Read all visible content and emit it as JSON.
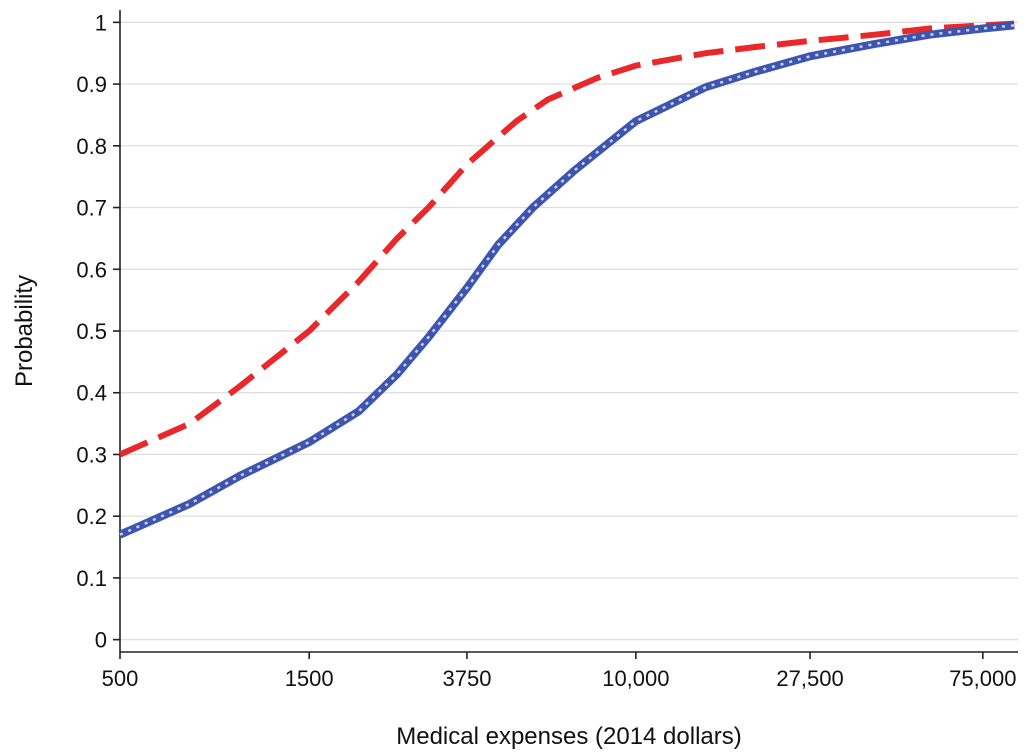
{
  "chart_data": {
    "type": "line",
    "title": "",
    "xlabel": "Medical expenses (2014 dollars)",
    "ylabel": "Probability",
    "x_scale": "log",
    "xlim": [
      500,
      92000
    ],
    "ylim": [
      -0.02,
      1.02
    ],
    "x_ticks": [
      500,
      1500,
      3750,
      10000,
      27500,
      75000
    ],
    "x_tick_labels": [
      "500",
      "1500",
      "3750",
      "10,000",
      "27,500",
      "75,000"
    ],
    "y_ticks": [
      0,
      0.1,
      0.2,
      0.3,
      0.4,
      0.5,
      0.6,
      0.7,
      0.8,
      0.9,
      1
    ],
    "y_tick_labels": [
      "0",
      "0.1",
      "0.2",
      "0.3",
      "0.4",
      "0.5",
      "0.6",
      "0.7",
      "0.8",
      "0.9",
      "1"
    ],
    "grid": true,
    "series": [
      {
        "color": "#e8282b",
        "style": "dashed",
        "points": [
          [
            500,
            0.3
          ],
          [
            750,
            0.35
          ],
          [
            1000,
            0.41
          ],
          [
            1500,
            0.5
          ],
          [
            2000,
            0.58
          ],
          [
            2500,
            0.65
          ],
          [
            3000,
            0.7
          ],
          [
            3750,
            0.77
          ],
          [
            5000,
            0.84
          ],
          [
            6000,
            0.875
          ],
          [
            8000,
            0.91
          ],
          [
            10000,
            0.93
          ],
          [
            15000,
            0.95
          ],
          [
            20000,
            0.96
          ],
          [
            27500,
            0.97
          ],
          [
            40000,
            0.98
          ],
          [
            55000,
            0.99
          ],
          [
            75000,
            0.995
          ],
          [
            90000,
            0.998
          ]
        ]
      },
      {
        "color": "#3e55b0",
        "style": "dotted",
        "points": [
          [
            500,
            0.17
          ],
          [
            750,
            0.22
          ],
          [
            1000,
            0.265
          ],
          [
            1500,
            0.32
          ],
          [
            2000,
            0.37
          ],
          [
            2500,
            0.43
          ],
          [
            3000,
            0.49
          ],
          [
            3750,
            0.57
          ],
          [
            4500,
            0.64
          ],
          [
            5500,
            0.7
          ],
          [
            7000,
            0.76
          ],
          [
            10000,
            0.84
          ],
          [
            15000,
            0.895
          ],
          [
            20000,
            0.92
          ],
          [
            27500,
            0.945
          ],
          [
            40000,
            0.965
          ],
          [
            55000,
            0.98
          ],
          [
            75000,
            0.99
          ],
          [
            90000,
            0.995
          ]
        ]
      }
    ]
  }
}
